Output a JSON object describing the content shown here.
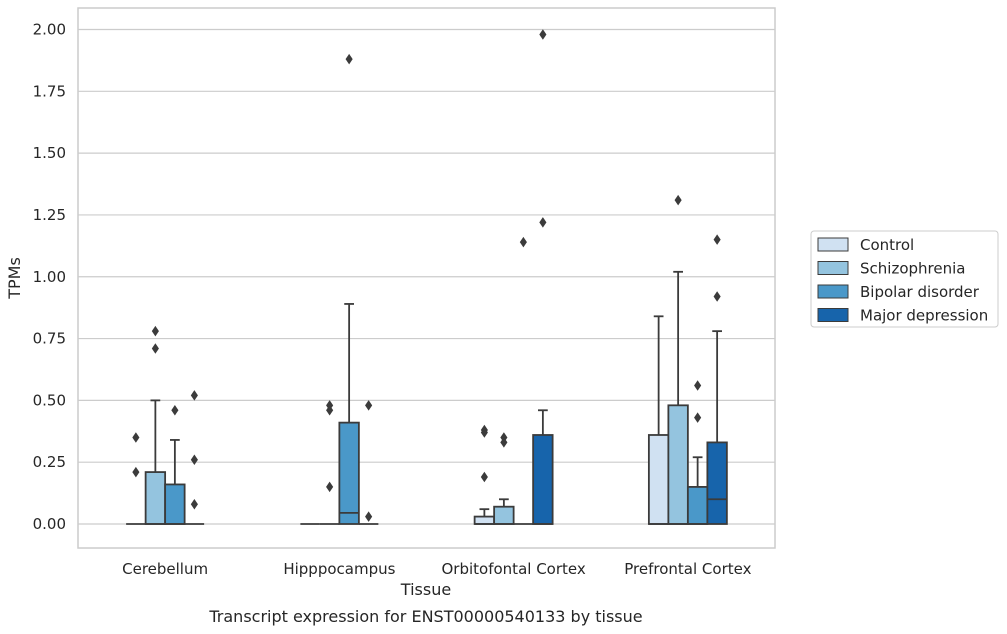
{
  "chart_data": {
    "type": "box",
    "title": "",
    "caption": "Transcript expression for ENST00000540133 by tissue",
    "xlabel": "Tissue",
    "ylabel": "TPMs",
    "ylim": [
      -0.1,
      2.08
    ],
    "yticks": [
      "0.00",
      "0.25",
      "0.50",
      "0.75",
      "1.00",
      "1.25",
      "1.50",
      "1.75",
      "2.00"
    ],
    "grid": "horizontal",
    "legend_position": "right",
    "categories": [
      "Cerebellum",
      "Hipppocampus",
      "Orbitofontal Cortex",
      "Prefrontal Cortex"
    ],
    "series": [
      {
        "name": "Control",
        "color": "#d0e1f2",
        "boxes": [
          {
            "q1": 0,
            "median": 0,
            "q3": 0,
            "whisker_low": 0,
            "whisker_high": 0,
            "outliers": [
              0.35,
              0.21
            ]
          },
          {
            "q1": 0,
            "median": 0,
            "q3": 0,
            "whisker_low": 0,
            "whisker_high": 0,
            "outliers": []
          },
          {
            "q1": 0,
            "median": 0,
            "q3": 0.03,
            "whisker_low": 0,
            "whisker_high": 0.06,
            "outliers": [
              0.38,
              0.37,
              0.19
            ]
          },
          {
            "q1": 0,
            "median": 0,
            "q3": 0.36,
            "whisker_low": 0,
            "whisker_high": 0.84,
            "outliers": []
          }
        ]
      },
      {
        "name": "Schizophrenia",
        "color": "#94c4df",
        "boxes": [
          {
            "q1": 0,
            "median": 0,
            "q3": 0.21,
            "whisker_low": 0,
            "whisker_high": 0.5,
            "outliers": [
              0.78,
              0.71
            ]
          },
          {
            "q1": 0,
            "median": 0,
            "q3": 0,
            "whisker_low": 0,
            "whisker_high": 0,
            "outliers": [
              0.48,
              0.46,
              0.15
            ]
          },
          {
            "q1": 0,
            "median": 0,
            "q3": 0.07,
            "whisker_low": 0,
            "whisker_high": 0.1,
            "outliers": [
              0.35,
              0.33
            ]
          },
          {
            "q1": 0,
            "median": 0,
            "q3": 0.48,
            "whisker_low": 0,
            "whisker_high": 1.02,
            "outliers": [
              1.31
            ]
          }
        ]
      },
      {
        "name": "Bipolar disorder",
        "color": "#4a98c9",
        "boxes": [
          {
            "q1": 0,
            "median": 0,
            "q3": 0.16,
            "whisker_low": 0,
            "whisker_high": 0.34,
            "outliers": [
              0.46
            ]
          },
          {
            "q1": 0,
            "median": 0.045,
            "q3": 0.41,
            "whisker_low": 0,
            "whisker_high": 0.89,
            "outliers": [
              1.88
            ]
          },
          {
            "q1": 0,
            "median": 0,
            "q3": 0,
            "whisker_low": 0,
            "whisker_high": 0,
            "outliers": [
              1.14
            ]
          },
          {
            "q1": 0,
            "median": 0,
            "q3": 0.15,
            "whisker_low": 0,
            "whisker_high": 0.27,
            "outliers": [
              0.56,
              0.43
            ]
          }
        ]
      },
      {
        "name": "Major depression",
        "color": "#1764ab",
        "boxes": [
          {
            "q1": 0,
            "median": 0,
            "q3": 0,
            "whisker_low": 0,
            "whisker_high": 0,
            "outliers": [
              0.52,
              0.26,
              0.08
            ]
          },
          {
            "q1": 0,
            "median": 0,
            "q3": 0,
            "whisker_low": 0,
            "whisker_high": 0,
            "outliers": [
              0.48,
              0.03
            ]
          },
          {
            "q1": 0,
            "median": 0,
            "q3": 0.36,
            "whisker_low": 0,
            "whisker_high": 0.46,
            "outliers": [
              1.98,
              1.22
            ]
          },
          {
            "q1": 0,
            "median": 0.1,
            "q3": 0.33,
            "whisker_low": 0,
            "whisker_high": 0.78,
            "outliers": [
              1.15,
              0.92
            ]
          }
        ]
      }
    ]
  }
}
